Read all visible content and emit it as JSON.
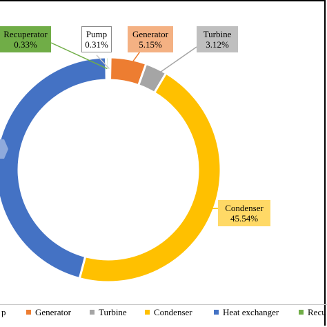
{
  "chart_data": {
    "type": "pie",
    "style": "donut",
    "title": "",
    "slices": [
      {
        "label": "Pump",
        "value": 0.31,
        "display": "0.31%",
        "color": "#c9c9c9"
      },
      {
        "label": "Generator",
        "value": 5.15,
        "display": "5.15%",
        "color": "#ed7d31"
      },
      {
        "label": "Turbine",
        "value": 3.12,
        "display": "3.12%",
        "color": "#a5a5a5"
      },
      {
        "label": "Condenser",
        "value": 45.54,
        "display": "45.54%",
        "color": "#ffc000"
      },
      {
        "label": "Heat exchanger",
        "value": 45.55,
        "display": "",
        "color": "#4472c4"
      },
      {
        "label": "Recuperator",
        "value": 0.33,
        "display": "0.33%",
        "color": "#70ad47"
      }
    ],
    "legend": {
      "placement": "bottom",
      "entries": [
        "Pump",
        "Generator",
        "Turbine",
        "Condenser",
        "Heat exchanger",
        "Recuperator"
      ],
      "visible_text": [
        "p",
        "Generator",
        "Turbine",
        "Condenser",
        "Heat exchanger",
        "Recu"
      ]
    }
  }
}
